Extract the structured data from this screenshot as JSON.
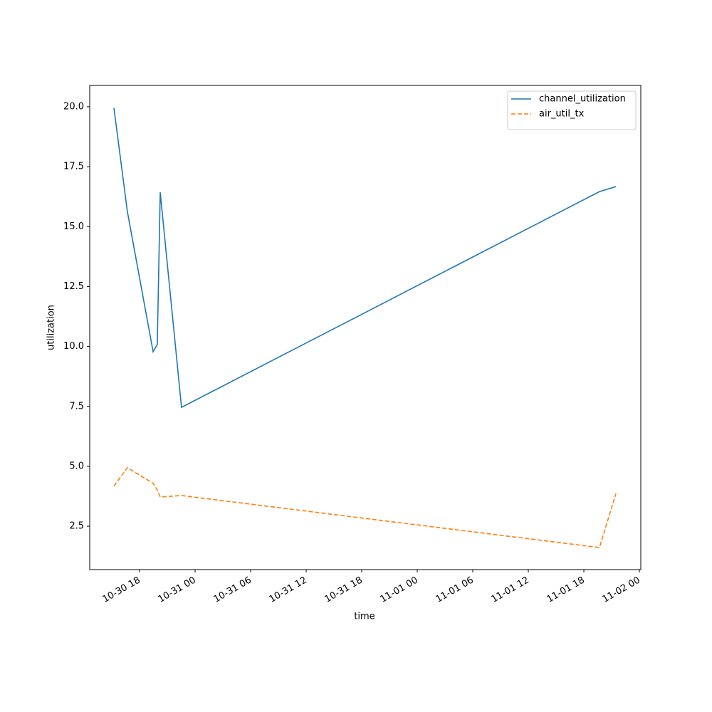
{
  "chart_data": {
    "type": "line",
    "xlabel": "time",
    "ylabel": "utilization",
    "x": [
      "10-30 15:14",
      "10-30 16:41",
      "10-30 19:28",
      "10-30 19:55",
      "10-30 20:14",
      "10-30 22:32",
      "11-01 19:41",
      "11-01 21:28"
    ],
    "series": [
      {
        "name": "channel_utilization",
        "color": "#1f77b4",
        "linestyle": "solid",
        "values": [
          19.95,
          15.63,
          9.78,
          10.08,
          16.43,
          7.46,
          16.46,
          16.67
        ]
      },
      {
        "name": "air_util_tx",
        "color": "#ff7f0e",
        "linestyle": "dashed",
        "values": [
          4.17,
          4.94,
          4.29,
          4.02,
          3.72,
          3.78,
          1.61,
          3.87
        ]
      }
    ],
    "xlim": [
      "10-30 12:37",
      "11-02 00:09"
    ],
    "xticks": [
      "10-30 18",
      "10-31 00",
      "10-31 06",
      "10-31 12",
      "10-31 18",
      "11-01 00",
      "11-01 06",
      "11-01 12",
      "11-01 18",
      "11-02 00"
    ],
    "ylim": [
      0.69,
      20.89
    ],
    "yticks": [
      2.5,
      {
        "value": 5,
        "label": "5.0"
      },
      7.5,
      {
        "value": 10,
        "label": "10.0"
      },
      12.5,
      {
        "value": 15,
        "label": "15.0"
      },
      17.5,
      {
        "value": 20,
        "label": "20.0"
      }
    ],
    "grid": false,
    "legend": "upper right"
  }
}
